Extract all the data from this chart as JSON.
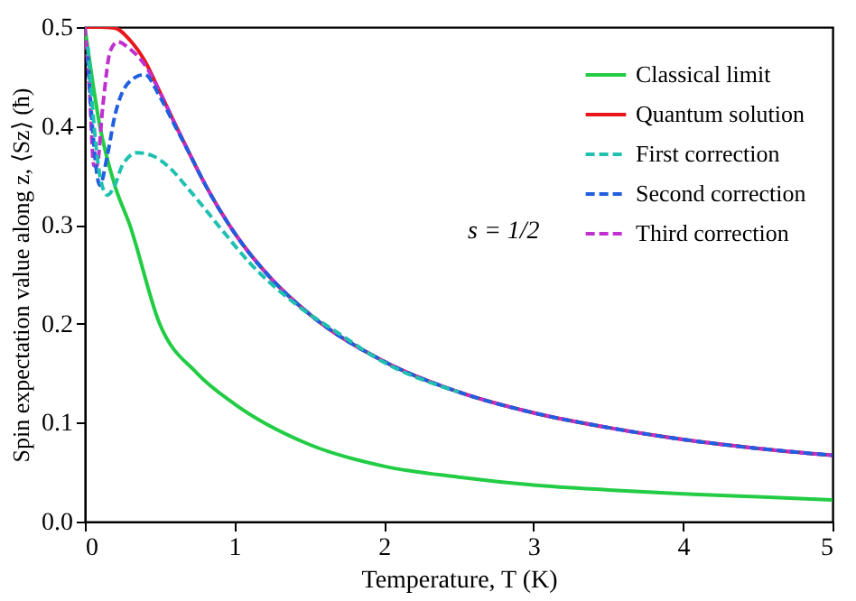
{
  "chart_data": {
    "type": "line",
    "xlabel": "Temperature, T (K)",
    "ylabel": "Spin expectation value along z, ⟨Sz⟩ (ħ)",
    "xlim": [
      0,
      5
    ],
    "ylim": [
      0,
      0.5
    ],
    "xticks": [
      0,
      1,
      2,
      3,
      4,
      5
    ],
    "yticks": [
      {
        "value": 0,
        "label": "0.0"
      },
      {
        "value": 0.1,
        "label": "0.1"
      },
      {
        "value": 0.2,
        "label": "0.2"
      },
      {
        "value": 0.3,
        "label": "0.3"
      },
      {
        "value": 0.4,
        "label": "0.4"
      },
      {
        "value": 0.5,
        "label": "0.5"
      }
    ],
    "grid": false,
    "legend": "top right",
    "marker": "none",
    "annotations": [
      "s = 1/2"
    ],
    "series": [
      {
        "name": "Classical limit",
        "color": "#22cc44",
        "line_style": "solid",
        "x": [
          0,
          0.1,
          0.2,
          0.3,
          0.5,
          0.75,
          1,
          1.5,
          2,
          2.5,
          3,
          3.5,
          4,
          4.5,
          5
        ],
        "values": [
          0.5,
          0.4,
          0.34,
          0.3,
          0.2,
          0.15,
          0.119,
          0.078,
          0.056,
          0.045,
          0.037,
          0.032,
          0.028,
          0.025,
          0.022
        ]
      },
      {
        "name": "Quantum solution",
        "color": "#e8161b",
        "line_style": "solid",
        "x": [
          0,
          0.1,
          0.2,
          0.3,
          0.4,
          0.5,
          0.6,
          0.7,
          0.8,
          1,
          1.25,
          1.5,
          2,
          2.5,
          3,
          3.5,
          4,
          4.5,
          5
        ],
        "values": [
          0.5,
          0.5,
          0.499,
          0.487,
          0.466,
          0.435,
          0.403,
          0.372,
          0.342,
          0.292,
          0.245,
          0.21,
          0.162,
          0.131,
          0.11,
          0.095,
          0.083,
          0.074,
          0.067
        ]
      },
      {
        "name": "First correction",
        "color": "#20c0b0",
        "line_style": "dashed",
        "x": [
          0.02,
          0.05,
          0.1,
          0.15,
          0.2,
          0.25,
          0.35,
          0.45,
          0.55,
          0.7,
          0.9,
          1.1,
          1.4,
          1.7,
          2,
          2.5
        ],
        "values": [
          0.48,
          0.42,
          0.35,
          0.33,
          0.34,
          0.36,
          0.373,
          0.37,
          0.36,
          0.335,
          0.298,
          0.262,
          0.221,
          0.19,
          0.161,
          0.131
        ]
      },
      {
        "name": "Second correction",
        "color": "#1f5fe0",
        "line_style": "dashed",
        "x": [
          0.02,
          0.05,
          0.1,
          0.15,
          0.2,
          0.3,
          0.4,
          0.5,
          0.6,
          0.7,
          0.8,
          1,
          1.25,
          1.5,
          2,
          2.5,
          3,
          3.5,
          4,
          4.5,
          5
        ],
        "values": [
          0.47,
          0.4,
          0.34,
          0.37,
          0.41,
          0.445,
          0.452,
          0.43,
          0.401,
          0.372,
          0.342,
          0.292,
          0.245,
          0.21,
          0.162,
          0.131,
          0.11,
          0.095,
          0.083,
          0.074,
          0.067
        ]
      },
      {
        "name": "Third correction",
        "color": "#c030d0",
        "line_style": "dashed",
        "x": [
          0,
          0.03,
          0.06,
          0.08,
          0.12,
          0.17,
          0.22,
          0.3,
          0.4,
          0.5,
          0.6,
          0.7,
          0.8,
          1,
          1.25,
          1.5,
          2,
          2.5,
          3,
          3.5,
          4,
          4.5,
          5
        ],
        "values": [
          0.5,
          0.44,
          0.36,
          0.36,
          0.42,
          0.476,
          0.485,
          0.478,
          0.462,
          0.435,
          0.403,
          0.372,
          0.342,
          0.292,
          0.245,
          0.21,
          0.162,
          0.131,
          0.11,
          0.095,
          0.083,
          0.074,
          0.067
        ]
      }
    ]
  }
}
